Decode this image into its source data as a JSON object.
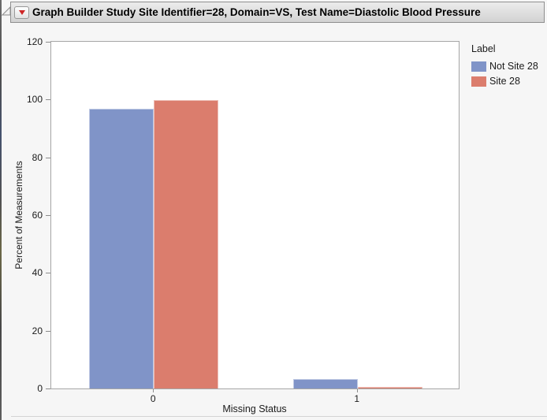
{
  "window": {
    "title": "Graph Builder Study Site Identifier=28, Domain=VS, Test Name=Diastolic Blood Pressure"
  },
  "icons": {
    "disclosure": "open-right-triangle-outline",
    "menu": "red-triangle-down"
  },
  "chart_data": {
    "type": "bar",
    "title": "Graph Builder Study Site Identifier=28, Domain=VS, Test Name=Diastolic Blood Pressure",
    "categories": [
      "0",
      "1"
    ],
    "series": [
      {
        "name": "Not Site 28",
        "color": "#8094c8",
        "values": [
          96.9,
          3.2
        ]
      },
      {
        "name": "Site 28",
        "color": "#db7d6d",
        "values": [
          99.9,
          0.5
        ]
      }
    ],
    "xlabel": "Missing Status",
    "ylabel": "Percent of Measurements",
    "ylim": [
      0,
      120
    ],
    "yticks": [
      0,
      20,
      40,
      60,
      80,
      100,
      120
    ],
    "legend_title": "Label",
    "legend_position": "right",
    "grid": false
  },
  "colors": {
    "series_blue": "#8094c8",
    "series_red": "#db7d6d",
    "titlebar_bg": "#dedede",
    "titlebar_border": "#8f8f8f",
    "axis_line": "#a6a6a6",
    "tick_mark": "#8c8c8c",
    "window_bg": "#f6f6f6",
    "plot_bg": "#ffffff",
    "red_triangle": "#ce2626"
  }
}
